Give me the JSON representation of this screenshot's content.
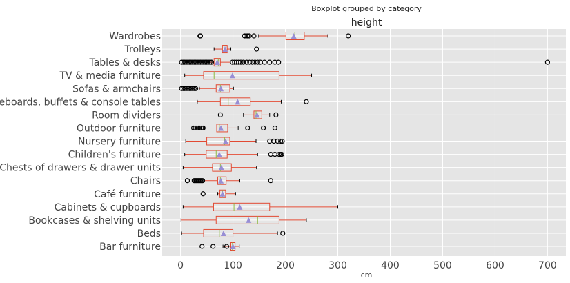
{
  "chart_data": {
    "type": "boxplot",
    "orientation": "horizontal",
    "suptitle": "Boxplot grouped by category",
    "title": "height",
    "xlabel": "cm",
    "ylabel": "",
    "xlim": [
      -35,
      735
    ],
    "xticks": [
      0,
      100,
      200,
      300,
      400,
      500,
      600,
      700
    ],
    "grid": true,
    "colors": {
      "background": "#e5e5e5",
      "grid": "#ffffff",
      "box": "#e24a33",
      "median": "#8eba42",
      "mean": "#988ed5",
      "flier": "#000000",
      "tick_text": "#444444"
    },
    "categories": [
      "Bar furniture",
      "Beds",
      "Bookcases & shelving units",
      "Cabinets & cupboards",
      "Café furniture",
      "Chairs",
      "Chests of drawers & drawer units",
      "Children's furniture",
      "Nursery furniture",
      "Outdoor furniture",
      "Room dividers",
      "Sideboards, buffets & console tables",
      "Sofas & armchairs",
      "TV & media furniture",
      "Tables & desks",
      "Trolleys",
      "Wardrobes"
    ],
    "boxes": [
      {
        "whislo": 81,
        "q1": 96,
        "med": 99,
        "q3": 104,
        "whishi": 112,
        "mean": 100,
        "fliers": [
          41,
          62,
          88
        ]
      },
      {
        "whislo": 2,
        "q1": 44,
        "med": 74,
        "q3": 100,
        "whislo_note": "",
        "whishi": 185,
        "mean": 82,
        "fliers": [
          195
        ]
      },
      {
        "whislo": 1,
        "q1": 68,
        "med": 147,
        "q3": 188,
        "whishi": 240,
        "mean": 130,
        "fliers": []
      },
      {
        "whislo": 5,
        "q1": 63,
        "med": 102,
        "q3": 170,
        "whishi": 300,
        "mean": 113,
        "fliers": []
      },
      {
        "whislo": 71,
        "q1": 75,
        "med": 80,
        "q3": 86,
        "whishi": 105,
        "mean": 80,
        "fliers": [
          43
        ]
      },
      {
        "whislo": 45,
        "q1": 71,
        "med": 76,
        "q3": 87,
        "whishi": 113,
        "mean": 77,
        "fliers": [
          13,
          26,
          28,
          30,
          32,
          34,
          36,
          38,
          40,
          42,
          172
        ]
      },
      {
        "whislo": 5,
        "q1": 61,
        "med": 76,
        "q3": 97,
        "whishi": 145,
        "mean": 78,
        "fliers": []
      },
      {
        "whislo": 8,
        "q1": 49,
        "med": 68,
        "q3": 89,
        "whishi": 147,
        "mean": 74,
        "fliers": [
          172,
          180,
          188,
          191,
          193
        ]
      },
      {
        "whislo": 10,
        "q1": 50,
        "med": 84,
        "q3": 94,
        "whishi": 144,
        "mean": 86,
        "fliers": [
          170,
          178,
          185,
          191,
          194
        ]
      },
      {
        "whislo": 46,
        "q1": 69,
        "med": 74,
        "q3": 90,
        "whishi": 110,
        "mean": 77,
        "fliers": [
          25,
          28,
          31,
          34,
          37,
          40,
          43,
          128,
          158,
          180
        ]
      },
      {
        "whislo": 120,
        "q1": 140,
        "med": 144,
        "q3": 155,
        "whishi": 170,
        "mean": 146,
        "fliers": [
          76,
          182
        ]
      },
      {
        "whislo": 32,
        "q1": 76,
        "med": 91,
        "q3": 133,
        "whishi": 192,
        "mean": 109,
        "fliers": [
          240
        ]
      },
      {
        "whislo": 36,
        "q1": 68,
        "med": 76,
        "q3": 94,
        "whishi": 101,
        "mean": 77,
        "fliers": [
          2,
          5,
          8,
          11,
          14,
          17,
          20,
          23,
          26,
          29
        ]
      },
      {
        "whislo": 8,
        "q1": 44,
        "med": 64,
        "q3": 188,
        "whishi": 250,
        "mean": 99,
        "fliers": []
      },
      {
        "whislo": 50,
        "q1": 64,
        "med": 72,
        "q3": 76,
        "whishi": 95,
        "mean": 70,
        "fliers": [
          2,
          5,
          8,
          11,
          14,
          17,
          20,
          23,
          26,
          29,
          32,
          35,
          38,
          41,
          44,
          47,
          50,
          53,
          56,
          59,
          99,
          103,
          107,
          111,
          115,
          120,
          126,
          132,
          137,
          142,
          147,
          152,
          160,
          170,
          180,
          187,
          700
        ]
      },
      {
        "whislo": 64,
        "q1": 80,
        "med": 83,
        "q3": 89,
        "whishi": 96,
        "mean": 85,
        "fliers": [
          145
        ]
      },
      {
        "whislo": 149,
        "q1": 201,
        "med": 218,
        "q3": 236,
        "whishi": 281,
        "mean": 216,
        "fliers": [
          37,
          38,
          122,
          125,
          128,
          131,
          140,
          320
        ]
      }
    ]
  }
}
